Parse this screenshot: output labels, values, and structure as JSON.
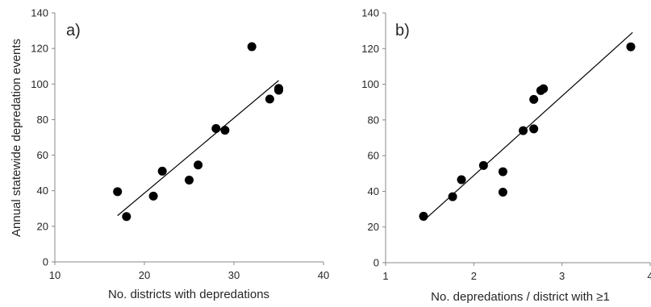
{
  "chart_data": [
    {
      "type": "scatter",
      "panel_label": "a)",
      "xlabel": "No. districts with depredations",
      "ylabel": "Annual statewide depredation events",
      "xlim": [
        10,
        40
      ],
      "ylim": [
        0,
        140
      ],
      "xticks": [
        "10",
        "20",
        "30",
        "40"
      ],
      "yticks": [
        "0",
        "20",
        "40",
        "60",
        "80",
        "100",
        "120",
        "140"
      ],
      "grid": false,
      "trendline": {
        "x": [
          17,
          35
        ],
        "y": [
          26,
          102
        ]
      },
      "x": [
        17,
        18,
        21,
        22,
        25,
        26,
        28,
        29,
        32,
        34,
        35,
        35
      ],
      "y": [
        39.5,
        25.5,
        37,
        51,
        46,
        54.5,
        75,
        74,
        121,
        91.5,
        96.5,
        97.5
      ]
    },
    {
      "type": "scatter",
      "panel_label": "b)",
      "xlabel": "No. depredations / district with ≥1",
      "ylabel": "",
      "xlim": [
        1,
        4
      ],
      "ylim": [
        0,
        140
      ],
      "xticks": [
        "1",
        "2",
        "3",
        "4"
      ],
      "yticks": [
        "0",
        "20",
        "40",
        "60",
        "80",
        "100",
        "120",
        "140"
      ],
      "grid": false,
      "trendline": {
        "x": [
          1.43,
          3.8
        ],
        "y": [
          23.5,
          129
        ]
      },
      "x": [
        1.43,
        1.76,
        1.86,
        2.11,
        2.33,
        2.33,
        2.56,
        2.68,
        2.68,
        2.76,
        2.79,
        3.78
      ],
      "y": [
        26,
        37,
        46.5,
        54.5,
        39.5,
        51,
        74,
        75,
        91.5,
        96.5,
        97.5,
        121
      ]
    }
  ]
}
